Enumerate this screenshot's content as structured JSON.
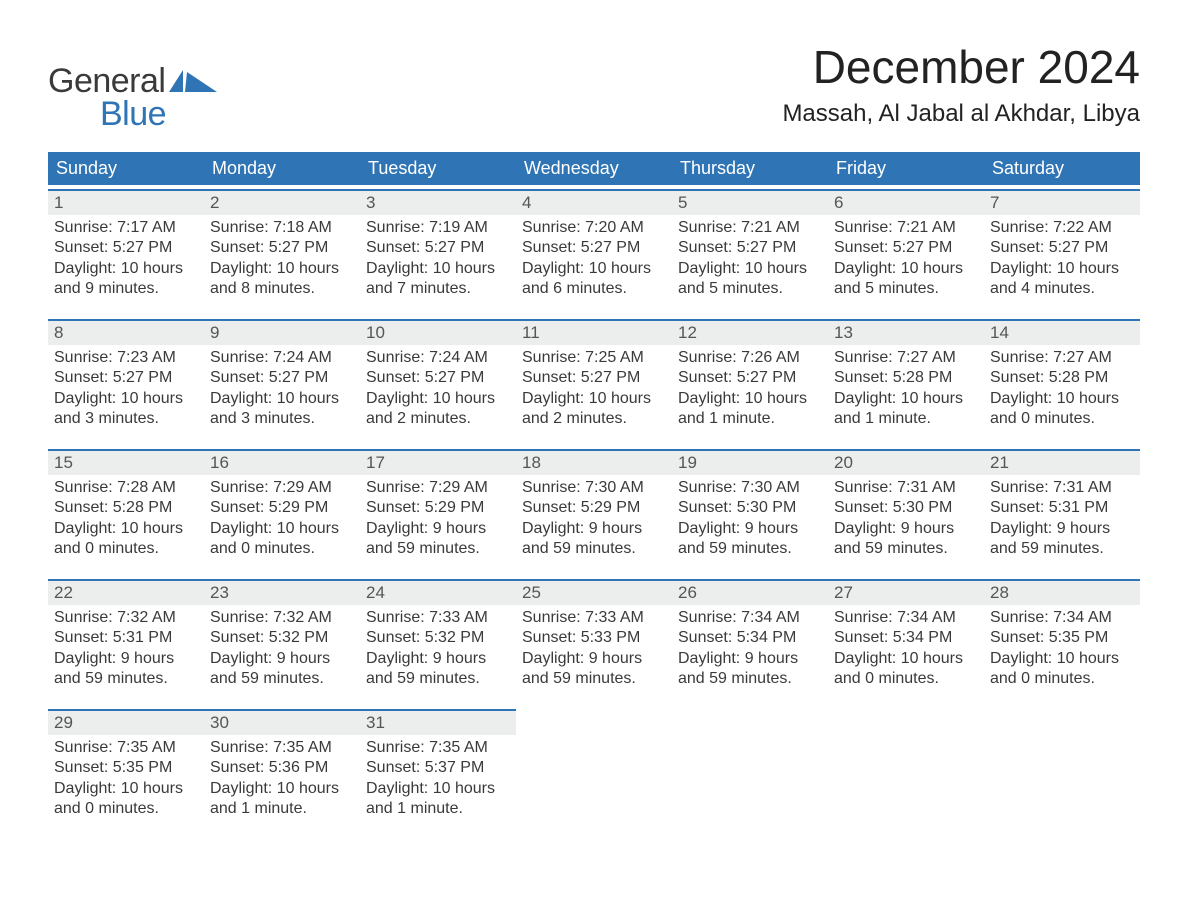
{
  "brand": {
    "word1": "General",
    "word2": "Blue",
    "flag_color": "#2f74b5"
  },
  "header": {
    "month_title": "December 2024",
    "location": "Massah, Al Jabal al Akhdar, Libya"
  },
  "colors": {
    "header_bar": "#2f74b5",
    "daynum_bg": "#eceded",
    "daynum_border": "#2f74b5",
    "text": "#3a3a3a",
    "dow_text": "#ffffff",
    "page_bg": "#ffffff"
  },
  "typography": {
    "month_title_fontsize": 46,
    "location_fontsize": 24,
    "dow_fontsize": 18,
    "daynum_fontsize": 17,
    "body_fontsize": 16
  },
  "days_of_week": [
    "Sunday",
    "Monday",
    "Tuesday",
    "Wednesday",
    "Thursday",
    "Friday",
    "Saturday"
  ],
  "weeks": [
    [
      {
        "num": "1",
        "sunrise": "Sunrise: 7:17 AM",
        "sunset": "Sunset: 5:27 PM",
        "daylight1": "Daylight: 10 hours",
        "daylight2": "and 9 minutes."
      },
      {
        "num": "2",
        "sunrise": "Sunrise: 7:18 AM",
        "sunset": "Sunset: 5:27 PM",
        "daylight1": "Daylight: 10 hours",
        "daylight2": "and 8 minutes."
      },
      {
        "num": "3",
        "sunrise": "Sunrise: 7:19 AM",
        "sunset": "Sunset: 5:27 PM",
        "daylight1": "Daylight: 10 hours",
        "daylight2": "and 7 minutes."
      },
      {
        "num": "4",
        "sunrise": "Sunrise: 7:20 AM",
        "sunset": "Sunset: 5:27 PM",
        "daylight1": "Daylight: 10 hours",
        "daylight2": "and 6 minutes."
      },
      {
        "num": "5",
        "sunrise": "Sunrise: 7:21 AM",
        "sunset": "Sunset: 5:27 PM",
        "daylight1": "Daylight: 10 hours",
        "daylight2": "and 5 minutes."
      },
      {
        "num": "6",
        "sunrise": "Sunrise: 7:21 AM",
        "sunset": "Sunset: 5:27 PM",
        "daylight1": "Daylight: 10 hours",
        "daylight2": "and 5 minutes."
      },
      {
        "num": "7",
        "sunrise": "Sunrise: 7:22 AM",
        "sunset": "Sunset: 5:27 PM",
        "daylight1": "Daylight: 10 hours",
        "daylight2": "and 4 minutes."
      }
    ],
    [
      {
        "num": "8",
        "sunrise": "Sunrise: 7:23 AM",
        "sunset": "Sunset: 5:27 PM",
        "daylight1": "Daylight: 10 hours",
        "daylight2": "and 3 minutes."
      },
      {
        "num": "9",
        "sunrise": "Sunrise: 7:24 AM",
        "sunset": "Sunset: 5:27 PM",
        "daylight1": "Daylight: 10 hours",
        "daylight2": "and 3 minutes."
      },
      {
        "num": "10",
        "sunrise": "Sunrise: 7:24 AM",
        "sunset": "Sunset: 5:27 PM",
        "daylight1": "Daylight: 10 hours",
        "daylight2": "and 2 minutes."
      },
      {
        "num": "11",
        "sunrise": "Sunrise: 7:25 AM",
        "sunset": "Sunset: 5:27 PM",
        "daylight1": "Daylight: 10 hours",
        "daylight2": "and 2 minutes."
      },
      {
        "num": "12",
        "sunrise": "Sunrise: 7:26 AM",
        "sunset": "Sunset: 5:27 PM",
        "daylight1": "Daylight: 10 hours",
        "daylight2": "and 1 minute."
      },
      {
        "num": "13",
        "sunrise": "Sunrise: 7:27 AM",
        "sunset": "Sunset: 5:28 PM",
        "daylight1": "Daylight: 10 hours",
        "daylight2": "and 1 minute."
      },
      {
        "num": "14",
        "sunrise": "Sunrise: 7:27 AM",
        "sunset": "Sunset: 5:28 PM",
        "daylight1": "Daylight: 10 hours",
        "daylight2": "and 0 minutes."
      }
    ],
    [
      {
        "num": "15",
        "sunrise": "Sunrise: 7:28 AM",
        "sunset": "Sunset: 5:28 PM",
        "daylight1": "Daylight: 10 hours",
        "daylight2": "and 0 minutes."
      },
      {
        "num": "16",
        "sunrise": "Sunrise: 7:29 AM",
        "sunset": "Sunset: 5:29 PM",
        "daylight1": "Daylight: 10 hours",
        "daylight2": "and 0 minutes."
      },
      {
        "num": "17",
        "sunrise": "Sunrise: 7:29 AM",
        "sunset": "Sunset: 5:29 PM",
        "daylight1": "Daylight: 9 hours",
        "daylight2": "and 59 minutes."
      },
      {
        "num": "18",
        "sunrise": "Sunrise: 7:30 AM",
        "sunset": "Sunset: 5:29 PM",
        "daylight1": "Daylight: 9 hours",
        "daylight2": "and 59 minutes."
      },
      {
        "num": "19",
        "sunrise": "Sunrise: 7:30 AM",
        "sunset": "Sunset: 5:30 PM",
        "daylight1": "Daylight: 9 hours",
        "daylight2": "and 59 minutes."
      },
      {
        "num": "20",
        "sunrise": "Sunrise: 7:31 AM",
        "sunset": "Sunset: 5:30 PM",
        "daylight1": "Daylight: 9 hours",
        "daylight2": "and 59 minutes."
      },
      {
        "num": "21",
        "sunrise": "Sunrise: 7:31 AM",
        "sunset": "Sunset: 5:31 PM",
        "daylight1": "Daylight: 9 hours",
        "daylight2": "and 59 minutes."
      }
    ],
    [
      {
        "num": "22",
        "sunrise": "Sunrise: 7:32 AM",
        "sunset": "Sunset: 5:31 PM",
        "daylight1": "Daylight: 9 hours",
        "daylight2": "and 59 minutes."
      },
      {
        "num": "23",
        "sunrise": "Sunrise: 7:32 AM",
        "sunset": "Sunset: 5:32 PM",
        "daylight1": "Daylight: 9 hours",
        "daylight2": "and 59 minutes."
      },
      {
        "num": "24",
        "sunrise": "Sunrise: 7:33 AM",
        "sunset": "Sunset: 5:32 PM",
        "daylight1": "Daylight: 9 hours",
        "daylight2": "and 59 minutes."
      },
      {
        "num": "25",
        "sunrise": "Sunrise: 7:33 AM",
        "sunset": "Sunset: 5:33 PM",
        "daylight1": "Daylight: 9 hours",
        "daylight2": "and 59 minutes."
      },
      {
        "num": "26",
        "sunrise": "Sunrise: 7:34 AM",
        "sunset": "Sunset: 5:34 PM",
        "daylight1": "Daylight: 9 hours",
        "daylight2": "and 59 minutes."
      },
      {
        "num": "27",
        "sunrise": "Sunrise: 7:34 AM",
        "sunset": "Sunset: 5:34 PM",
        "daylight1": "Daylight: 10 hours",
        "daylight2": "and 0 minutes."
      },
      {
        "num": "28",
        "sunrise": "Sunrise: 7:34 AM",
        "sunset": "Sunset: 5:35 PM",
        "daylight1": "Daylight: 10 hours",
        "daylight2": "and 0 minutes."
      }
    ],
    [
      {
        "num": "29",
        "sunrise": "Sunrise: 7:35 AM",
        "sunset": "Sunset: 5:35 PM",
        "daylight1": "Daylight: 10 hours",
        "daylight2": "and 0 minutes."
      },
      {
        "num": "30",
        "sunrise": "Sunrise: 7:35 AM",
        "sunset": "Sunset: 5:36 PM",
        "daylight1": "Daylight: 10 hours",
        "daylight2": "and 1 minute."
      },
      {
        "num": "31",
        "sunrise": "Sunrise: 7:35 AM",
        "sunset": "Sunset: 5:37 PM",
        "daylight1": "Daylight: 10 hours",
        "daylight2": "and 1 minute."
      },
      null,
      null,
      null,
      null
    ]
  ]
}
